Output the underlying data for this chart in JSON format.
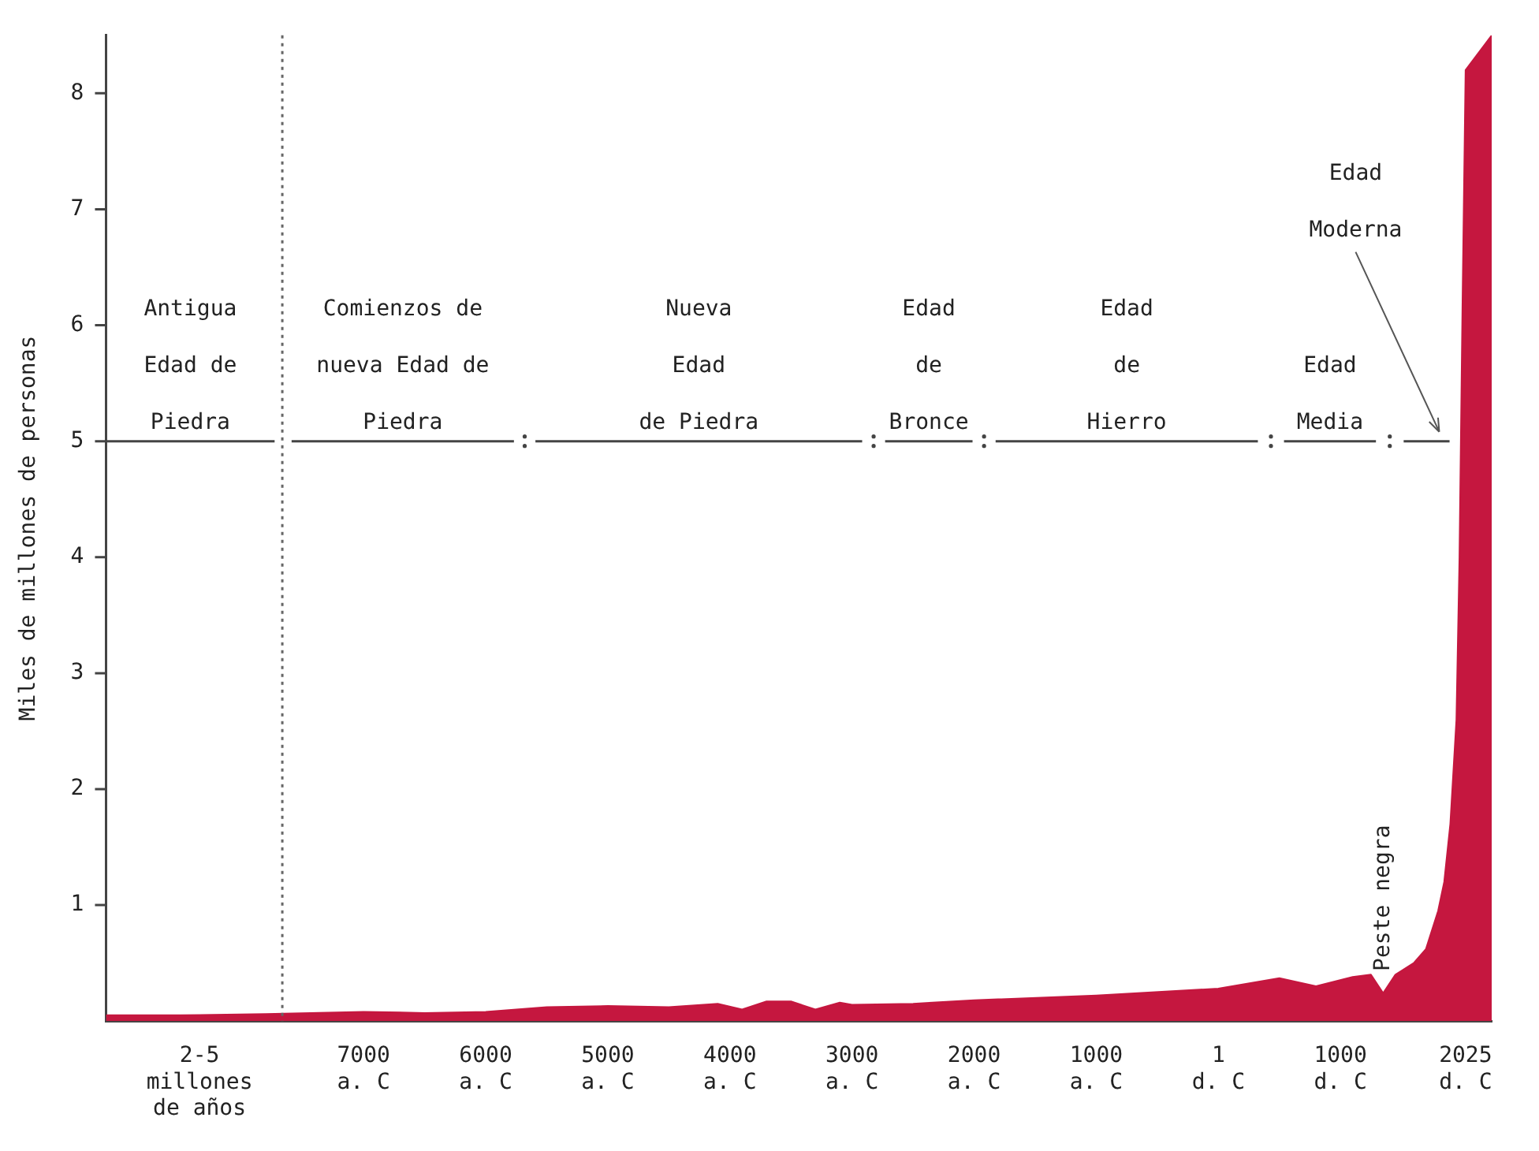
{
  "chart_data": {
    "type": "area",
    "ylabel": "Miles de millones de personas",
    "x": [
      -9110,
      -8500,
      -7800,
      -7000,
      -6500,
      -6000,
      -5500,
      -5000,
      -4500,
      -4100,
      -3900,
      -3700,
      -3500,
      -3300,
      -3100,
      -3000,
      -2500,
      -2000,
      -1000,
      0,
      500,
      800,
      1100,
      1250,
      1350,
      1450,
      1600,
      1700,
      1800,
      1850,
      1900,
      1950,
      1975,
      2000,
      2025,
      2239
    ],
    "series": [
      {
        "color": "#c5173f",
        "values": [
          0.05,
          0.05,
          0.06,
          0.08,
          0.07,
          0.08,
          0.12,
          0.13,
          0.12,
          0.15,
          0.1,
          0.17,
          0.17,
          0.1,
          0.16,
          0.14,
          0.15,
          0.18,
          0.22,
          0.28,
          0.37,
          0.3,
          0.38,
          0.4,
          0.24,
          0.4,
          0.5,
          0.62,
          0.95,
          1.2,
          1.7,
          2.6,
          4.0,
          6.2,
          8.2,
          8.5
        ]
      },
      {
        "type": "line",
        "name": "Antigua\nEdad de\nPiedra",
        "color": "#444444",
        "x": [
          -9110,
          -7729
        ],
        "values": [
          5,
          5
        ]
      },
      {
        "type": "line",
        "name": "Comienzos de\nnueva Edad de\nPiedra",
        "color": "#444444",
        "x": [
          -7590,
          -5769
        ],
        "values": [
          5,
          5
        ]
      },
      {
        "type": "line",
        "name": "Nueva\nEdad\nde Piedra",
        "color": "#444444",
        "x": [
          -5593,
          -2917
        ],
        "values": [
          5,
          5
        ]
      },
      {
        "type": "line",
        "name": "Edad\nde\nBronce",
        "color": "#444444",
        "x": [
          -2729,
          -2013
        ],
        "values": [
          5,
          5
        ]
      },
      {
        "type": "line",
        "name": "Edad\nde\nHierro",
        "color": "#444444",
        "x": [
          -1824,
          324
        ],
        "values": [
          5,
          5
        ]
      },
      {
        "type": "line",
        "name": "Edad\nMedia",
        "color": "#444444",
        "x": [
          538,
          1291
        ],
        "values": [
          5,
          5
        ]
      },
      {
        "type": "line",
        "name": "Edad\nModerna",
        "color": "#444444",
        "x": [
          1518,
          1894
        ],
        "values": [
          5,
          5
        ]
      }
    ],
    "xlim": [
      -9110,
      2239
    ],
    "xticks": [
      {
        "value": -8344,
        "label": "2-5\nmillones\nde años"
      },
      {
        "value": -7000,
        "label": "7000\na. C"
      },
      {
        "value": -6000,
        "label": "6000\na. C"
      },
      {
        "value": -5000,
        "label": "5000\na. C"
      },
      {
        "value": -4000,
        "label": "4000\na. C"
      },
      {
        "value": -3000,
        "label": "3000\na. C"
      },
      {
        "value": -2000,
        "label": "2000\na. C"
      },
      {
        "value": -1000,
        "label": "1000\na. C"
      },
      {
        "value": 1,
        "label": "1\nd. C"
      },
      {
        "value": 1000,
        "label": "1000\nd. C"
      },
      {
        "value": 2025,
        "label": "2025\nd. C"
      }
    ],
    "ylim": [
      0,
      8.5
    ],
    "yticks": [
      1,
      2,
      3,
      4,
      5,
      6,
      7,
      8
    ],
    "grid": false,
    "legend": false,
    "marker": "none",
    "ref_lines": [
      {
        "axis": "x",
        "value": -7666,
        "line_style": "dotted",
        "color": "#666666"
      }
    ],
    "annotations": [
      {
        "text": "Peste negra",
        "x": 1350,
        "y": 0.24
      }
    ]
  }
}
